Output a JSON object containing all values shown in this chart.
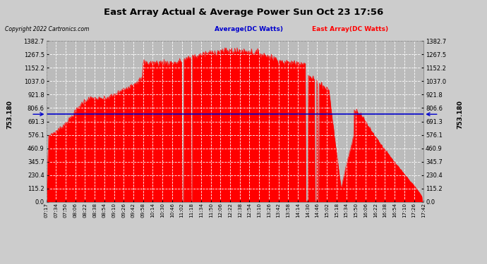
{
  "title": "East Array Actual & Average Power Sun Oct 23 17:56",
  "copyright": "Copyright 2022 Cartronics.com",
  "legend_average": "Average(DC Watts)",
  "legend_east": "East Array(DC Watts)",
  "average_value": 753.18,
  "ymax": 1382.7,
  "yticks": [
    0.0,
    115.2,
    230.4,
    345.7,
    460.9,
    576.1,
    691.3,
    806.6,
    921.8,
    1037.0,
    1152.2,
    1267.5,
    1382.7
  ],
  "ytick_labels": [
    "0.0",
    "115.2",
    "230.4",
    "345.7",
    "460.9",
    "576.1",
    "691.3",
    "806.6",
    "921.8",
    "1037.0",
    "1152.2",
    "1267.5",
    "1382.7"
  ],
  "background_color": "#cccccc",
  "plot_bg_color": "#bbbbbb",
  "fill_color": "#ff0000",
  "avg_line_color": "#0000cc",
  "grid_color": "#ffffff",
  "title_color": "#000000",
  "copyright_color": "#000000",
  "legend_avg_color": "#0000cc",
  "legend_east_color": "#ff0000",
  "xtick_labels": [
    "07:17",
    "07:34",
    "07:50",
    "08:06",
    "08:22",
    "08:38",
    "08:54",
    "09:10",
    "09:26",
    "09:42",
    "09:58",
    "10:14",
    "10:30",
    "10:46",
    "11:02",
    "11:18",
    "11:34",
    "11:50",
    "12:06",
    "12:22",
    "12:38",
    "12:54",
    "13:10",
    "13:26",
    "13:42",
    "13:58",
    "14:14",
    "14:30",
    "14:46",
    "15:02",
    "15:18",
    "15:34",
    "15:50",
    "16:06",
    "16:22",
    "16:38",
    "16:54",
    "17:10",
    "17:26",
    "17:42"
  ]
}
